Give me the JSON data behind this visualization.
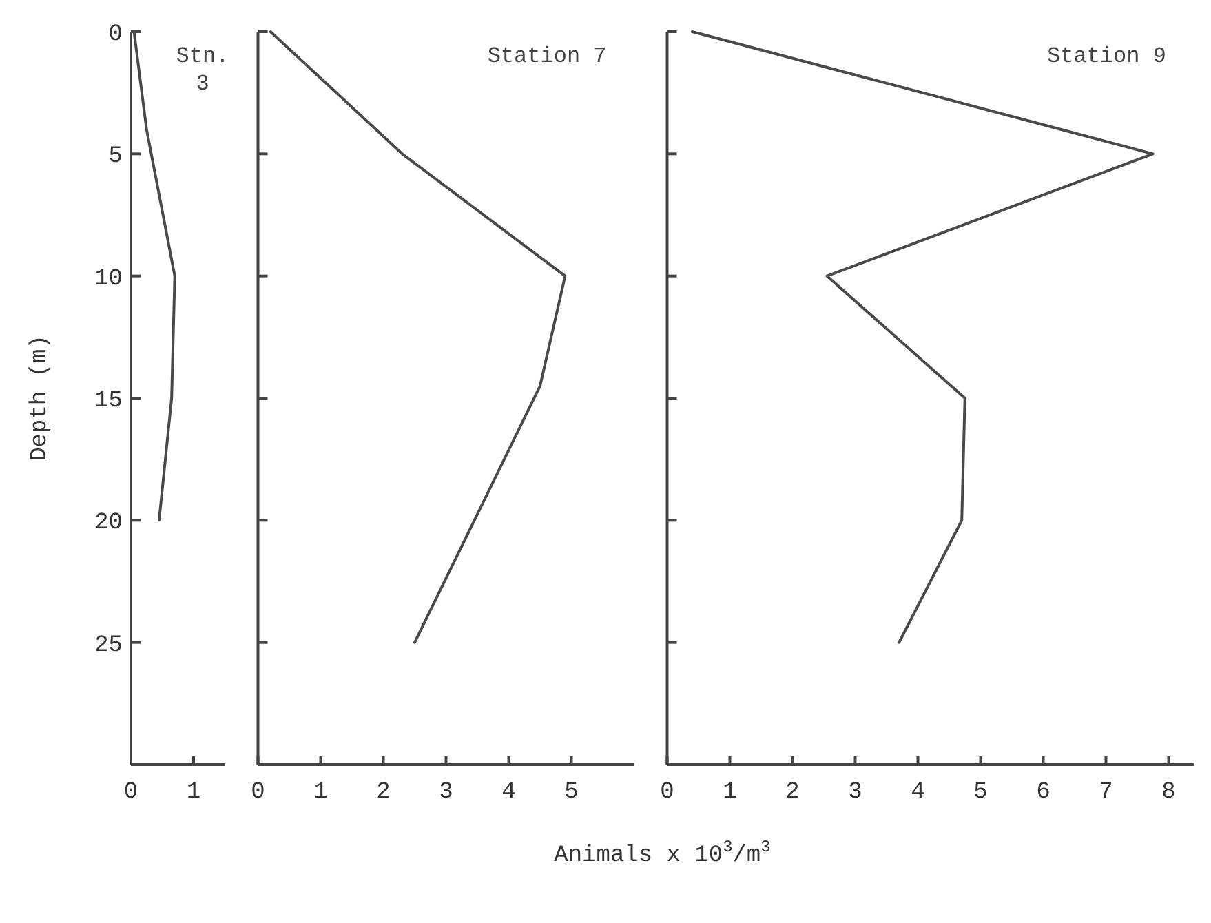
{
  "chart_data": [
    {
      "type": "line",
      "title": "Stn. 3",
      "ylabel": "Depth (m)",
      "x": [
        0.05,
        0.25,
        0.7,
        0.65,
        0.45
      ],
      "values": [
        0,
        4,
        10,
        15,
        20
      ],
      "color": "#4a4a4a",
      "xlim": [
        0,
        1.5
      ],
      "xticks": [
        0,
        1
      ],
      "ylim": [
        30,
        0
      ],
      "yticks": [
        0,
        5,
        10,
        15,
        20,
        25
      ],
      "grid": false,
      "marker": "none"
    },
    {
      "type": "line",
      "title": "Station 7",
      "x": [
        0.2,
        2.3,
        4.9,
        4.5,
        2.5
      ],
      "values": [
        0,
        5,
        10,
        14.5,
        25
      ],
      "color": "#4a4a4a",
      "xlim": [
        0,
        6
      ],
      "xticks": [
        0,
        1,
        2,
        3,
        4,
        5
      ],
      "ylim": [
        30,
        0
      ],
      "yticks": [
        {
          "value": 0,
          "label": null
        },
        {
          "value": 5,
          "label": null
        },
        {
          "value": 10,
          "label": null
        },
        {
          "value": 15,
          "label": null
        },
        {
          "value": 20,
          "label": null
        },
        {
          "value": 25,
          "label": null
        }
      ],
      "tick_labels": "x",
      "grid": false,
      "marker": "none"
    },
    {
      "type": "line",
      "title": "Station 9",
      "xlabel": "Animals x 10$^{3}$/m$^{3}$",
      "x": [
        0.4,
        7.75,
        2.55,
        4.75,
        4.7,
        3.7
      ],
      "values": [
        0,
        5,
        10,
        15,
        20,
        25
      ],
      "color": "#4a4a4a",
      "xlim": [
        0,
        8.4
      ],
      "xticks": [
        0,
        1,
        2,
        3,
        4,
        5,
        6,
        7,
        8
      ],
      "ylim": [
        30,
        0
      ],
      "yticks": [
        {
          "value": 0,
          "label": null
        },
        {
          "value": 5,
          "label": null
        },
        {
          "value": 10,
          "label": null
        },
        {
          "value": 15,
          "label": null
        },
        {
          "value": 20,
          "label": null
        },
        {
          "value": 25,
          "label": null
        }
      ],
      "tick_labels": "x",
      "grid": false,
      "marker": "none"
    }
  ]
}
